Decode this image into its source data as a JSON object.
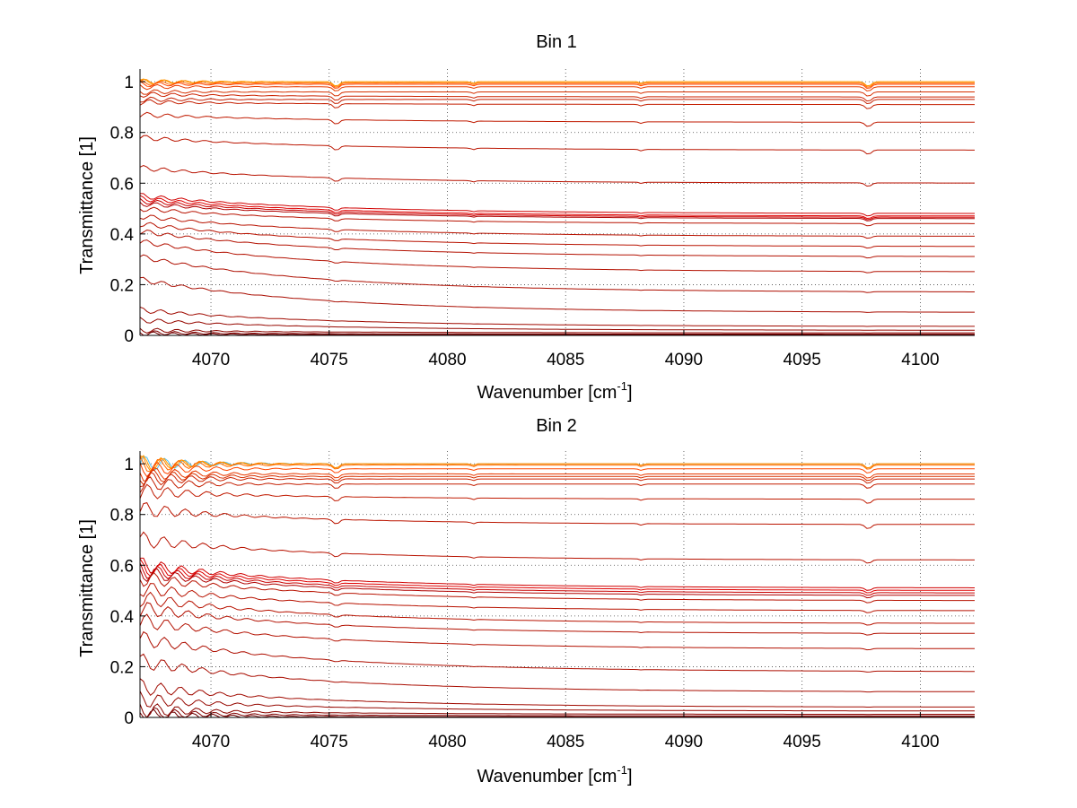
{
  "chart_data": [
    {
      "type": "line",
      "title": "Bin 1",
      "xlabel": "Wavenumber [cm",
      "xlabel_sup": "-1",
      "xlabel_end": "]",
      "ylabel": "Transmittance [1]",
      "xlim": [
        4067,
        4102.3
      ],
      "ylim": [
        0,
        1.05
      ],
      "xticks": [
        4070,
        4075,
        4080,
        4085,
        4090,
        4095,
        4100
      ],
      "xtick_labels": [
        "4070",
        "4075",
        "4080",
        "4085",
        "4090",
        "4095",
        "4100"
      ],
      "yticks": [
        0,
        0.2,
        0.4,
        0.6,
        0.8,
        1
      ],
      "ytick_labels": [
        "0",
        "0.2",
        "0.4",
        "0.6",
        "0.8",
        "1"
      ],
      "grid": true,
      "x_grid_only_lines": [
        4070,
        4075,
        4080,
        4085,
        4090,
        4095,
        4100
      ],
      "series": [
        {
          "values_start": 1.0,
          "values_end": 1.0,
          "color": "#ff8c00"
        },
        {
          "values_start": 1.0,
          "values_end": 1.0,
          "color": "#ff9900"
        },
        {
          "values_start": 0.995,
          "values_end": 0.995,
          "color": "#ff6a00"
        },
        {
          "values_start": 0.99,
          "values_end": 0.99,
          "color": "#ff4500"
        },
        {
          "values_start": 0.98,
          "values_end": 0.98,
          "color": "#e83a00"
        },
        {
          "values_start": 0.96,
          "values_end": 0.96,
          "color": "#d63000"
        },
        {
          "values_start": 0.95,
          "values_end": 0.94,
          "color": "#cc2200"
        },
        {
          "values_start": 0.93,
          "values_end": 0.93,
          "color": "#c41e00"
        },
        {
          "values_start": 0.92,
          "values_end": 0.91,
          "color": "#c41e00"
        },
        {
          "values_start": 0.87,
          "values_end": 0.84,
          "color": "#c01a00"
        },
        {
          "values_start": 0.78,
          "values_end": 0.73,
          "color": "#bb1500"
        },
        {
          "values_start": 0.66,
          "values_end": 0.6,
          "color": "#b81200"
        },
        {
          "values_start": 0.55,
          "values_end": 0.48,
          "color": "#d00000"
        },
        {
          "values_start": 0.54,
          "values_end": 0.47,
          "color": "#e00000"
        },
        {
          "values_start": 0.53,
          "values_end": 0.465,
          "color": "#c80000"
        },
        {
          "values_start": 0.52,
          "values_end": 0.46,
          "color": "#b00000"
        },
        {
          "values_start": 0.5,
          "values_end": 0.44,
          "color": "#b81200"
        },
        {
          "values_start": 0.47,
          "values_end": 0.39,
          "color": "#b81200"
        },
        {
          "values_start": 0.44,
          "values_end": 0.35,
          "color": "#b81200"
        },
        {
          "values_start": 0.41,
          "values_end": 0.31,
          "color": "#b31000"
        },
        {
          "values_start": 0.37,
          "values_end": 0.25,
          "color": "#b31000"
        },
        {
          "values_start": 0.31,
          "values_end": 0.17,
          "color": "#ae0e00"
        },
        {
          "values_start": 0.22,
          "values_end": 0.09,
          "color": "#a90c00"
        },
        {
          "values_start": 0.1,
          "values_end": 0.035,
          "color": "#a00a00"
        },
        {
          "values_start": 0.06,
          "values_end": 0.02,
          "color": "#960800"
        },
        {
          "values_start": 0.02,
          "values_end": 0.01,
          "color": "#8c0600"
        },
        {
          "values_start": 0.01,
          "values_end": 0.005,
          "color": "#800000"
        },
        {
          "values_start": 0.005,
          "values_end": 0.002,
          "color": "#700000"
        }
      ]
    },
    {
      "type": "line",
      "title": "Bin 2",
      "xlabel": "Wavenumber [cm",
      "xlabel_sup": "-1",
      "xlabel_end": "]",
      "ylabel": "Transmittance [1]",
      "xlim": [
        4067,
        4102.3
      ],
      "ylim": [
        0,
        1.05
      ],
      "xticks": [
        4070,
        4075,
        4080,
        4085,
        4090,
        4095,
        4100
      ],
      "xtick_labels": [
        "4070",
        "4075",
        "4080",
        "4085",
        "4090",
        "4095",
        "4100"
      ],
      "yticks": [
        0,
        0.2,
        0.4,
        0.6,
        0.8,
        1
      ],
      "ytick_labels": [
        "0",
        "0.2",
        "0.4",
        "0.6",
        "0.8",
        "1"
      ],
      "grid": true,
      "x_grid_only_lines": [
        4070,
        4075,
        4080,
        4085,
        4090,
        4095,
        4100
      ],
      "series": [
        {
          "values_start": 1.0,
          "values_end": 1.0,
          "color": "#4fc3f7"
        },
        {
          "values_start": 1.0,
          "values_end": 1.0,
          "color": "#ff9900"
        },
        {
          "values_start": 1.0,
          "values_end": 1.0,
          "color": "#ff8c00"
        },
        {
          "values_start": 0.995,
          "values_end": 0.995,
          "color": "#ff6a00"
        },
        {
          "values_start": 0.98,
          "values_end": 0.98,
          "color": "#ff4500"
        },
        {
          "values_start": 0.96,
          "values_end": 0.96,
          "color": "#e83a00"
        },
        {
          "values_start": 0.95,
          "values_end": 0.95,
          "color": "#d63000"
        },
        {
          "values_start": 0.94,
          "values_end": 0.94,
          "color": "#cc2200"
        },
        {
          "values_start": 0.92,
          "values_end": 0.92,
          "color": "#c41e00"
        },
        {
          "values_start": 0.89,
          "values_end": 0.86,
          "color": "#c01a00"
        },
        {
          "values_start": 0.82,
          "values_end": 0.76,
          "color": "#bb1500"
        },
        {
          "values_start": 0.7,
          "values_end": 0.62,
          "color": "#b81200"
        },
        {
          "values_start": 0.6,
          "values_end": 0.51,
          "color": "#d00000"
        },
        {
          "values_start": 0.59,
          "values_end": 0.5,
          "color": "#e00000"
        },
        {
          "values_start": 0.58,
          "values_end": 0.49,
          "color": "#c80000"
        },
        {
          "values_start": 0.57,
          "values_end": 0.48,
          "color": "#b00000"
        },
        {
          "values_start": 0.55,
          "values_end": 0.46,
          "color": "#b81200"
        },
        {
          "values_start": 0.51,
          "values_end": 0.42,
          "color": "#b81200"
        },
        {
          "values_start": 0.47,
          "values_end": 0.37,
          "color": "#b81200"
        },
        {
          "values_start": 0.43,
          "values_end": 0.33,
          "color": "#b31000"
        },
        {
          "values_start": 0.38,
          "values_end": 0.27,
          "color": "#b31000"
        },
        {
          "values_start": 0.31,
          "values_end": 0.18,
          "color": "#ae0e00"
        },
        {
          "values_start": 0.22,
          "values_end": 0.1,
          "color": "#a90c00"
        },
        {
          "values_start": 0.12,
          "values_end": 0.04,
          "color": "#a00a00"
        },
        {
          "values_start": 0.07,
          "values_end": 0.025,
          "color": "#960800"
        },
        {
          "values_start": 0.03,
          "values_end": 0.012,
          "color": "#8c0600"
        },
        {
          "values_start": 0.015,
          "values_end": 0.006,
          "color": "#800000"
        },
        {
          "values_start": 0.005,
          "values_end": 0.002,
          "color": "#700000"
        }
      ]
    }
  ]
}
